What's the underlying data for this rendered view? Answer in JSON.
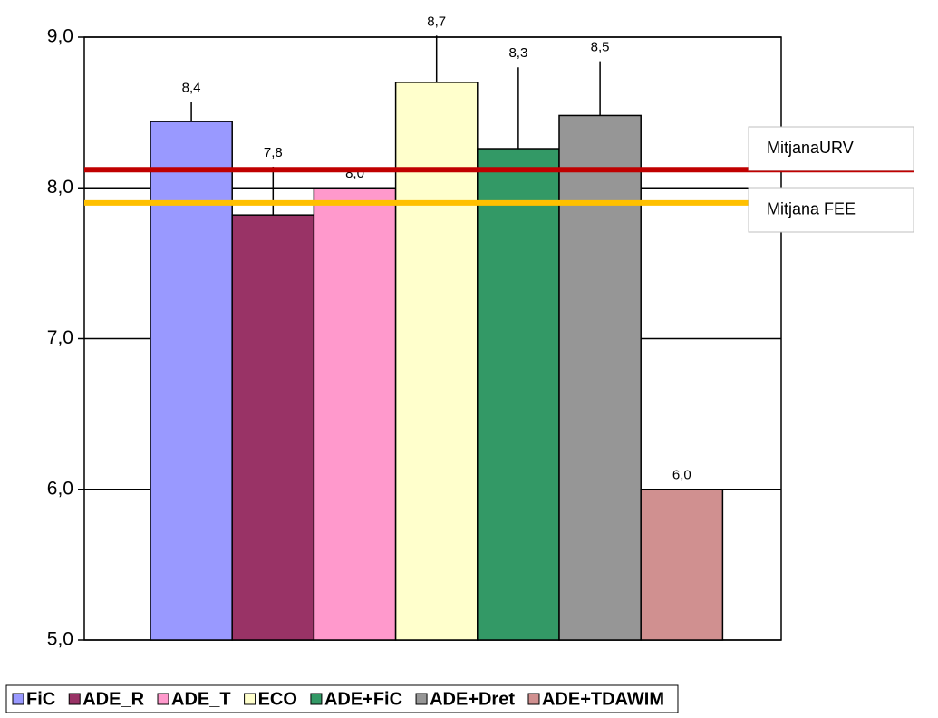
{
  "chart_data": {
    "type": "bar",
    "ylim": [
      5,
      9
    ],
    "yticks": [
      {
        "value": 5,
        "label": "5,0"
      },
      {
        "value": 6,
        "label": "6,0"
      },
      {
        "value": 7,
        "label": "7,0"
      },
      {
        "value": 8,
        "label": "8,0"
      },
      {
        "value": 9,
        "label": "9,0"
      }
    ],
    "grid": true,
    "legend": "bottom",
    "series": [
      {
        "name": "FiC",
        "color": "#9999ff",
        "values": [
          8.44
        ],
        "errors": [
          0.13
        ],
        "value_labels": [
          "8,4"
        ]
      },
      {
        "name": "ADE_R",
        "color": "#993366",
        "values": [
          7.82
        ],
        "errors": [
          0.32
        ],
        "value_labels": [
          "7,8"
        ]
      },
      {
        "name": "ADE_T",
        "color": "#ff99cc",
        "values": [
          8.0
        ],
        "errors": [
          0
        ],
        "value_labels": [
          "8,0"
        ]
      },
      {
        "name": "ECO",
        "color": "#ffffcc",
        "values": [
          8.7
        ],
        "errors": [
          0.31
        ],
        "value_labels": [
          "8,7"
        ]
      },
      {
        "name": "ADE+FiC",
        "color": "#339966",
        "values": [
          8.26
        ],
        "errors": [
          0.54
        ],
        "value_labels": [
          "8,3"
        ]
      },
      {
        "name": "ADE+Dret",
        "color": "#969696",
        "values": [
          8.48
        ],
        "errors": [
          0.36
        ],
        "value_labels": [
          "8,5"
        ]
      },
      {
        "name": "ADE+TDAWIM",
        "color": "#d09090",
        "values": [
          6.0
        ],
        "errors": [
          0
        ],
        "value_labels": [
          "6,0"
        ]
      }
    ],
    "reference_lines": [
      {
        "label": "MitjanaURV",
        "value": 8.12,
        "color": "#c00000"
      },
      {
        "label": "Mitjana FEE",
        "value": 7.9,
        "color": "#ffc000"
      }
    ]
  }
}
